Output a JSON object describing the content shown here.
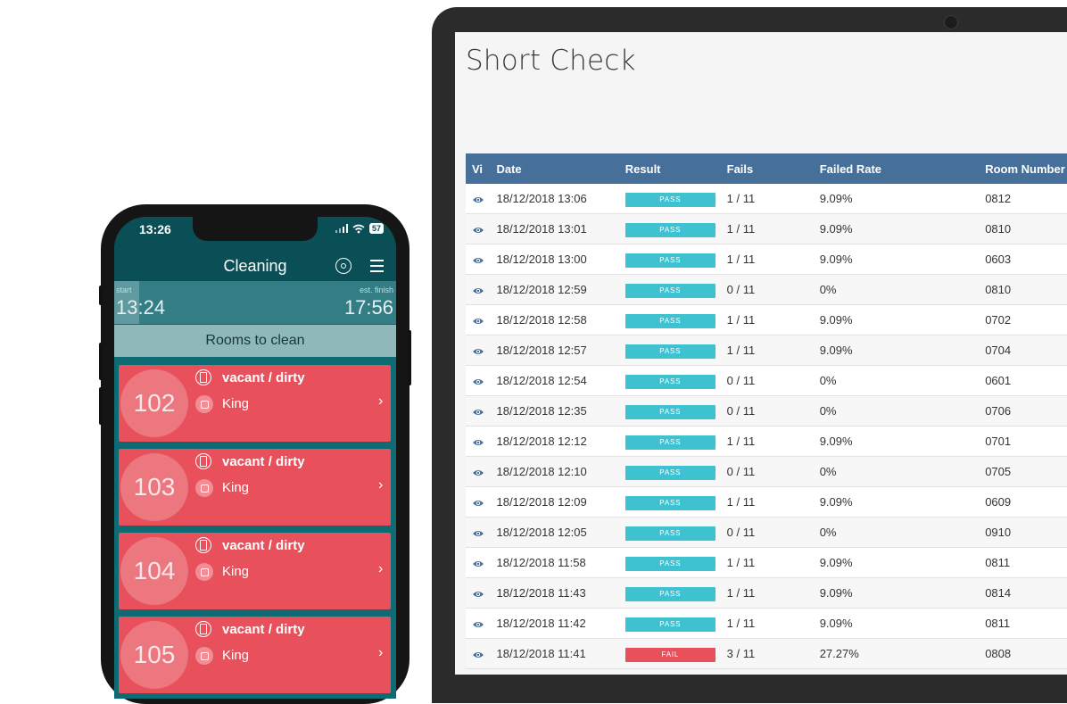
{
  "laptop": {
    "title": "Short Check",
    "columns": [
      "Vi",
      "Date",
      "Result",
      "Fails",
      "Failed Rate",
      "Room Number"
    ],
    "colors": {
      "header": "#466f99",
      "pass": "#3ec2d1",
      "fail": "#e8515c",
      "eye": "#466f99"
    },
    "rows": [
      {
        "date": "18/12/2018 13:06",
        "result": "PASS",
        "fails": "1 / 11",
        "rate": "9.09%",
        "room": "0812"
      },
      {
        "date": "18/12/2018 13:01",
        "result": "PASS",
        "fails": "1 / 11",
        "rate": "9.09%",
        "room": "0810"
      },
      {
        "date": "18/12/2018 13:00",
        "result": "PASS",
        "fails": "1 / 11",
        "rate": "9.09%",
        "room": "0603"
      },
      {
        "date": "18/12/2018 12:59",
        "result": "PASS",
        "fails": "0 / 11",
        "rate": "0%",
        "room": "0810"
      },
      {
        "date": "18/12/2018 12:58",
        "result": "PASS",
        "fails": "1 / 11",
        "rate": "9.09%",
        "room": "0702"
      },
      {
        "date": "18/12/2018 12:57",
        "result": "PASS",
        "fails": "1 / 11",
        "rate": "9.09%",
        "room": "0704"
      },
      {
        "date": "18/12/2018 12:54",
        "result": "PASS",
        "fails": "0 / 11",
        "rate": "0%",
        "room": "0601"
      },
      {
        "date": "18/12/2018 12:35",
        "result": "PASS",
        "fails": "0 / 11",
        "rate": "0%",
        "room": "0706"
      },
      {
        "date": "18/12/2018 12:12",
        "result": "PASS",
        "fails": "1 / 11",
        "rate": "9.09%",
        "room": "0701"
      },
      {
        "date": "18/12/2018 12:10",
        "result": "PASS",
        "fails": "0 / 11",
        "rate": "0%",
        "room": "0705"
      },
      {
        "date": "18/12/2018 12:09",
        "result": "PASS",
        "fails": "1 / 11",
        "rate": "9.09%",
        "room": "0609"
      },
      {
        "date": "18/12/2018 12:05",
        "result": "PASS",
        "fails": "0 / 11",
        "rate": "0%",
        "room": "0910"
      },
      {
        "date": "18/12/2018 11:58",
        "result": "PASS",
        "fails": "1 / 11",
        "rate": "9.09%",
        "room": "0811"
      },
      {
        "date": "18/12/2018 11:43",
        "result": "PASS",
        "fails": "1 / 11",
        "rate": "9.09%",
        "room": "0814"
      },
      {
        "date": "18/12/2018 11:42",
        "result": "PASS",
        "fails": "1 / 11",
        "rate": "9.09%",
        "room": "0811"
      },
      {
        "date": "18/12/2018 11:41",
        "result": "FAIL",
        "fails": "3 / 11",
        "rate": "27.27%",
        "room": "0808"
      }
    ]
  },
  "phone": {
    "status_time": "13:26",
    "battery": "57",
    "app_title": "Cleaning",
    "start_label": "start",
    "start_time": "13:24",
    "finish_label": "est. finish",
    "finish_time": "17:56",
    "progress_fraction": 0.09,
    "section_title": "Rooms to clean",
    "icons": {
      "header": [
        "search-icon",
        "menu-icon"
      ],
      "card": [
        "door-icon",
        "bed-icon",
        "chevron-right-icon"
      ]
    },
    "colors": {
      "header": "#0b4f56",
      "card": "#e8515c",
      "section": "#8fb8b9"
    },
    "rooms": [
      {
        "number": "102",
        "status": "vacant / dirty",
        "type": "King"
      },
      {
        "number": "103",
        "status": "vacant / dirty",
        "type": "King"
      },
      {
        "number": "104",
        "status": "vacant / dirty",
        "type": "King"
      },
      {
        "number": "105",
        "status": "vacant / dirty",
        "type": "King"
      }
    ]
  }
}
